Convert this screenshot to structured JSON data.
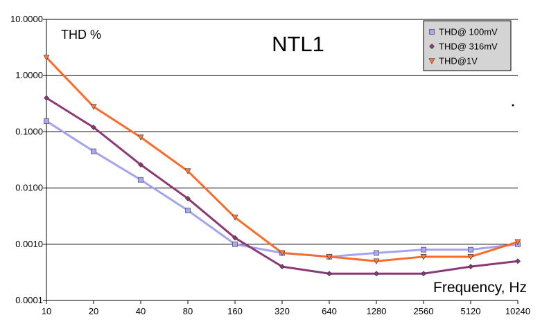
{
  "chart_data": {
    "type": "line",
    "title": "NTL1",
    "ylabel": "THD %",
    "xlabel": "Frequency, Hz",
    "y_scale": "log",
    "ylim": [
      0.0001,
      10
    ],
    "y_ticks": [
      "10.0000",
      "1.0000",
      "0.1000",
      "0.0100",
      "0.0010",
      "0.0001"
    ],
    "categories": [
      "10",
      "20",
      "40",
      "80",
      "160",
      "320",
      "640",
      "1280",
      "2560",
      "5120",
      "10240"
    ],
    "grid": "horizontal",
    "legend_position": "top-right",
    "series": [
      {
        "name": "THD@ 100mV",
        "color": "#a3a3f0",
        "marker": "square",
        "marker_color": "#a8a8ff",
        "values": [
          0.155,
          0.045,
          0.014,
          0.004,
          0.001,
          0.0007,
          0.0006,
          0.0007,
          0.0008,
          0.0008,
          0.001
        ]
      },
      {
        "name": "THD@ 316mV",
        "color": "#8b3a74",
        "marker": "diamond",
        "marker_color": "#8b3a74",
        "values": [
          0.4,
          0.12,
          0.026,
          0.0065,
          0.0013,
          0.0004,
          0.0003,
          0.0003,
          0.0003,
          0.0004,
          0.0005
        ]
      },
      {
        "name": "THD@1V",
        "color": "#ff6a2a",
        "marker": "triangle-down",
        "marker_color": "#ff7a40",
        "values": [
          2.1,
          0.28,
          0.08,
          0.02,
          0.003,
          0.0007,
          0.0006,
          0.0005,
          0.0006,
          0.0006,
          0.0011
        ]
      }
    ]
  }
}
